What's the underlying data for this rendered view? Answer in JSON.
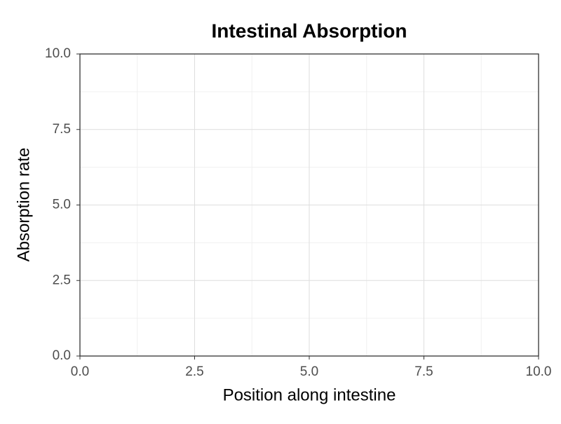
{
  "chart_data": {
    "type": "line",
    "title": "Intestinal Absorption",
    "x_label": "Position along intestine",
    "y_label": "Absorption rate",
    "series": [],
    "xlim": [
      0,
      10
    ],
    "ylim": [
      0,
      10
    ],
    "xticks": [
      {
        "value": 0,
        "label": "0.0"
      },
      {
        "value": 2.5,
        "label": "2.5"
      },
      {
        "value": 5,
        "label": "5.0"
      },
      {
        "value": 7.5,
        "label": "7.5"
      },
      {
        "value": 10,
        "label": "10.0"
      }
    ],
    "yticks": [
      {
        "value": 0,
        "label": "0.0"
      },
      {
        "value": 2.5,
        "label": "2.5"
      },
      {
        "value": 5,
        "label": "5.0"
      },
      {
        "value": 7.5,
        "label": "7.5"
      },
      {
        "value": 10,
        "label": "10.0"
      }
    ],
    "grid": true
  }
}
